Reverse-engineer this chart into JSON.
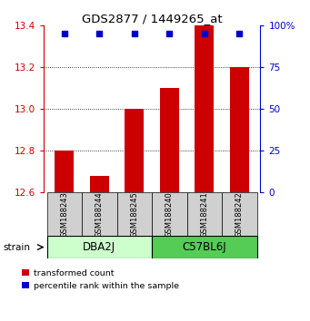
{
  "title": "GDS2877 / 1449265_at",
  "samples": [
    "GSM188243",
    "GSM188244",
    "GSM188245",
    "GSM188240",
    "GSM188241",
    "GSM188242"
  ],
  "red_values": [
    12.8,
    12.68,
    13.0,
    13.1,
    13.4,
    13.2
  ],
  "blue_values": [
    100,
    100,
    100,
    100,
    100,
    100
  ],
  "groups": [
    {
      "label": "DBA2J",
      "indices": [
        0,
        1,
        2
      ],
      "color": "#ccffcc"
    },
    {
      "label": "C57BL6J",
      "indices": [
        3,
        4,
        5
      ],
      "color": "#55cc55"
    }
  ],
  "ylim_left": [
    12.6,
    13.4
  ],
  "ylim_right": [
    0,
    100
  ],
  "yticks_left": [
    12.6,
    12.8,
    13.0,
    13.2,
    13.4
  ],
  "yticks_right": [
    0,
    25,
    50,
    75,
    100
  ],
  "ytick_labels_right": [
    "0",
    "25",
    "50",
    "75",
    "100%"
  ],
  "bar_color": "#cc0000",
  "dot_color": "#0000cc",
  "bar_width": 0.55,
  "legend_red": "transformed count",
  "legend_blue": "percentile rank within the sample",
  "background_color": "#ffffff",
  "grid_color": "#808080",
  "sample_box_color": "#d0d0d0"
}
